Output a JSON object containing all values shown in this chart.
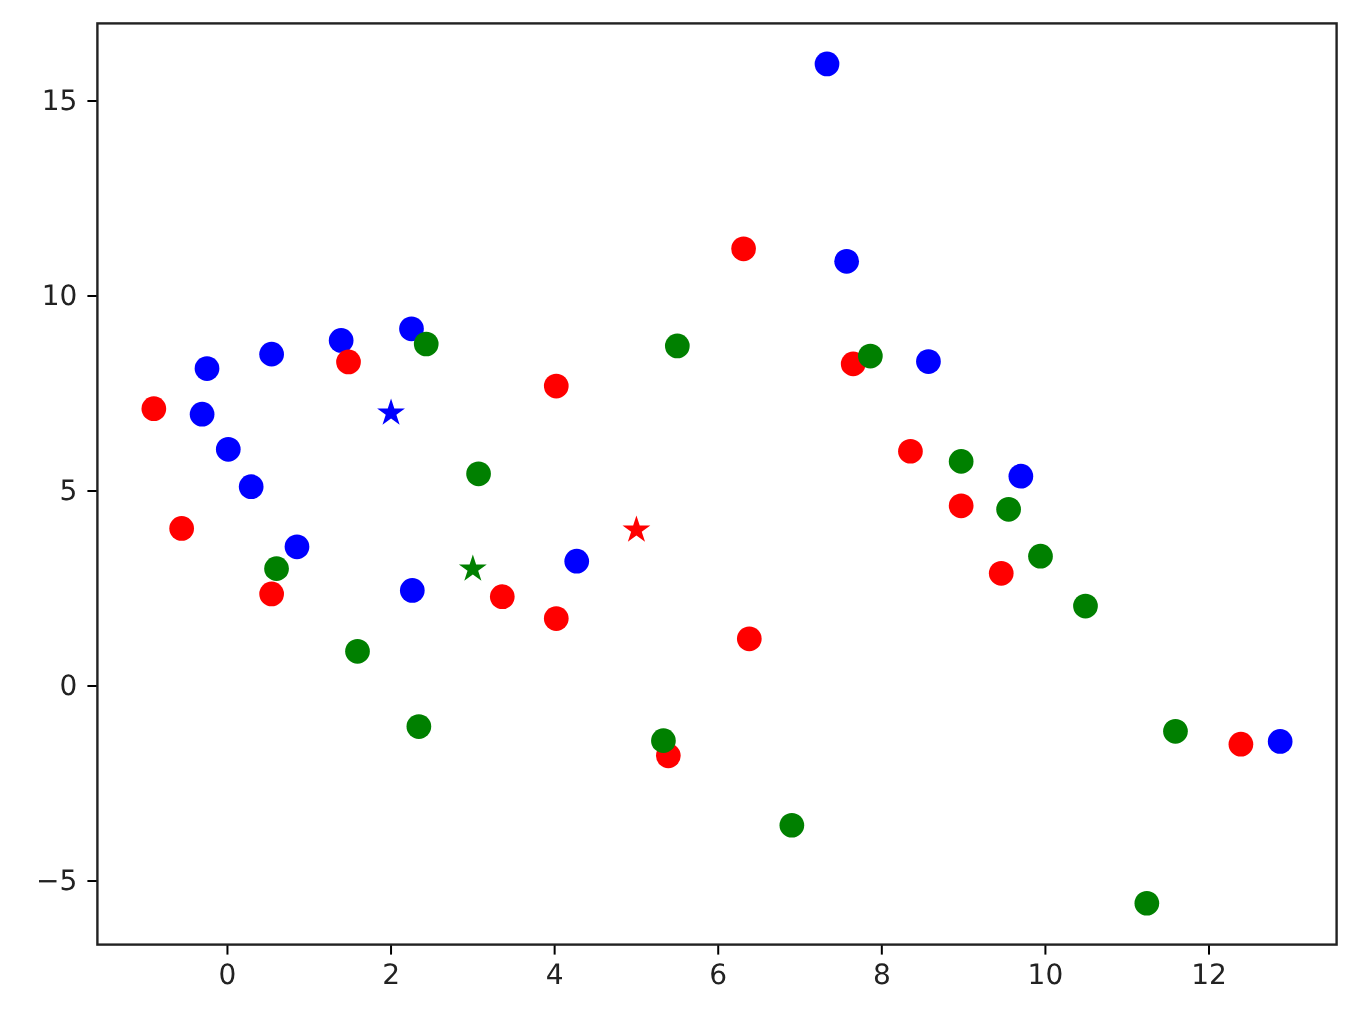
{
  "chart_data": {
    "type": "scatter",
    "xlim": [
      -1.59,
      13.56
    ],
    "ylim": [
      -6.63,
      16.99
    ],
    "xticks": [
      0,
      2,
      4,
      6,
      8,
      10,
      12
    ],
    "yticks": [
      {
        "value": -5,
        "label": "−5"
      },
      0,
      5,
      10,
      15
    ],
    "marker": "circle",
    "series": [
      {
        "color": "#0000ff",
        "x": [
          -0.25,
          -0.31,
          0.01,
          0.29,
          0.54,
          1.39,
          2.25,
          0.85,
          2.26,
          4.27,
          7.33,
          7.57,
          8.57,
          9.7,
          12.87
        ],
        "values": [
          8.14,
          6.97,
          6.07,
          5.11,
          8.51,
          8.86,
          9.16,
          3.57,
          2.45,
          3.2,
          15.95,
          10.89,
          8.32,
          5.38,
          -1.42
        ]
      },
      {
        "color": "#ff0000",
        "x": [
          -0.9,
          1.48,
          4.02,
          -0.56,
          0.54,
          3.36,
          4.02,
          5.39,
          6.31,
          7.65,
          8.35,
          8.97,
          6.38,
          9.46,
          12.39
        ],
        "values": [
          7.11,
          8.31,
          7.69,
          4.04,
          2.36,
          2.29,
          1.73,
          -1.79,
          11.21,
          8.26,
          6.02,
          4.62,
          1.21,
          2.89,
          -1.49
        ]
      },
      {
        "color": "#008000",
        "x": [
          2.43,
          5.5,
          3.07,
          0.6,
          1.59,
          2.34,
          5.33,
          7.86,
          8.97,
          9.55,
          9.94,
          10.49,
          6.9,
          11.59,
          11.24
        ],
        "values": [
          8.77,
          8.72,
          5.44,
          3.01,
          0.89,
          -1.04,
          -1.4,
          8.46,
          5.76,
          4.53,
          3.33,
          2.05,
          -3.57,
          -1.16,
          -5.57
        ]
      },
      {
        "color": "#0000ff",
        "marker": "star",
        "x": [
          2
        ],
        "values": [
          7
        ]
      },
      {
        "color": "#008000",
        "marker": "star",
        "x": [
          3
        ],
        "values": [
          3
        ]
      },
      {
        "color": "#ff0000",
        "marker": "star",
        "x": [
          5
        ],
        "values": [
          4
        ]
      }
    ]
  }
}
